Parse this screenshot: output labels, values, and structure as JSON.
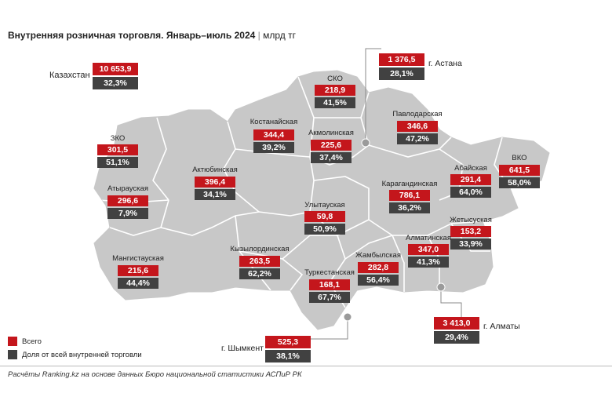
{
  "title": {
    "main": "Внутренняя розничная торговля. Январь–июль 2024",
    "separator": "|",
    "unit": "млрд тг"
  },
  "country": {
    "label": "Казахстан",
    "total": "10 653,9",
    "share": "32,3%"
  },
  "regions": [
    {
      "id": "sko",
      "label": "СКО",
      "total": "218,9",
      "share": "41,5%"
    },
    {
      "id": "kostanay",
      "label": "Костанайская",
      "total": "344,4",
      "share": "39,2%"
    },
    {
      "id": "akmola",
      "label": "Акмолинская",
      "total": "225,6",
      "share": "37,4%"
    },
    {
      "id": "pavlodar",
      "label": "Павлодарская",
      "total": "346,6",
      "share": "47,2%"
    },
    {
      "id": "zko",
      "label": "ЗКО",
      "total": "301,5",
      "share": "51,1%"
    },
    {
      "id": "aktobe",
      "label": "Актюбинская",
      "total": "396,4",
      "share": "34,1%"
    },
    {
      "id": "atyrau",
      "label": "Атырауская",
      "total": "296,6",
      "share": "7,9%"
    },
    {
      "id": "karaganda",
      "label": "Карагандинская",
      "total": "786,1",
      "share": "36,2%"
    },
    {
      "id": "abay",
      "label": "Абайская",
      "total": "291,4",
      "share": "64,0%"
    },
    {
      "id": "vko",
      "label": "ВКО",
      "total": "641,5",
      "share": "58,0%"
    },
    {
      "id": "ulytau",
      "label": "Улытауская",
      "total": "59,8",
      "share": "50,9%"
    },
    {
      "id": "zhetysu",
      "label": "Жетысуская",
      "total": "153,2",
      "share": "33,9%"
    },
    {
      "id": "mangystau",
      "label": "Мангистауская",
      "total": "215,6",
      "share": "44,4%"
    },
    {
      "id": "kyzylorda",
      "label": "Кызылординская",
      "total": "263,5",
      "share": "62,2%"
    },
    {
      "id": "almaty-region",
      "label": "Алматинская",
      "total": "347,0",
      "share": "41,3%"
    },
    {
      "id": "zhambyl",
      "label": "Жамбылская",
      "total": "282,8",
      "share": "56,4%"
    },
    {
      "id": "turkestan",
      "label": "Туркестанская",
      "total": "168,1",
      "share": "67,7%"
    }
  ],
  "cities": [
    {
      "id": "astana",
      "label": "г. Астана",
      "total": "1 376,5",
      "share": "28,1%"
    },
    {
      "id": "almaty",
      "label": "г. Алматы",
      "total": "3 413,0",
      "share": "29,4%"
    },
    {
      "id": "shymkent",
      "label": "г. Шымкент",
      "total": "525,3",
      "share": "38,1%"
    }
  ],
  "legend": [
    {
      "label": "Всего",
      "color": "#c4161c"
    },
    {
      "label": "Доля от всей внутренней торговли",
      "color": "#414141"
    }
  ],
  "colors": {
    "map_fill": "#c8c8c8",
    "map_border": "#ffffff",
    "total": "#c4161c",
    "share": "#414141"
  },
  "source": "Расчёты Ranking.kz на основе данных Бюро национальной статистики АСПиР РК"
}
